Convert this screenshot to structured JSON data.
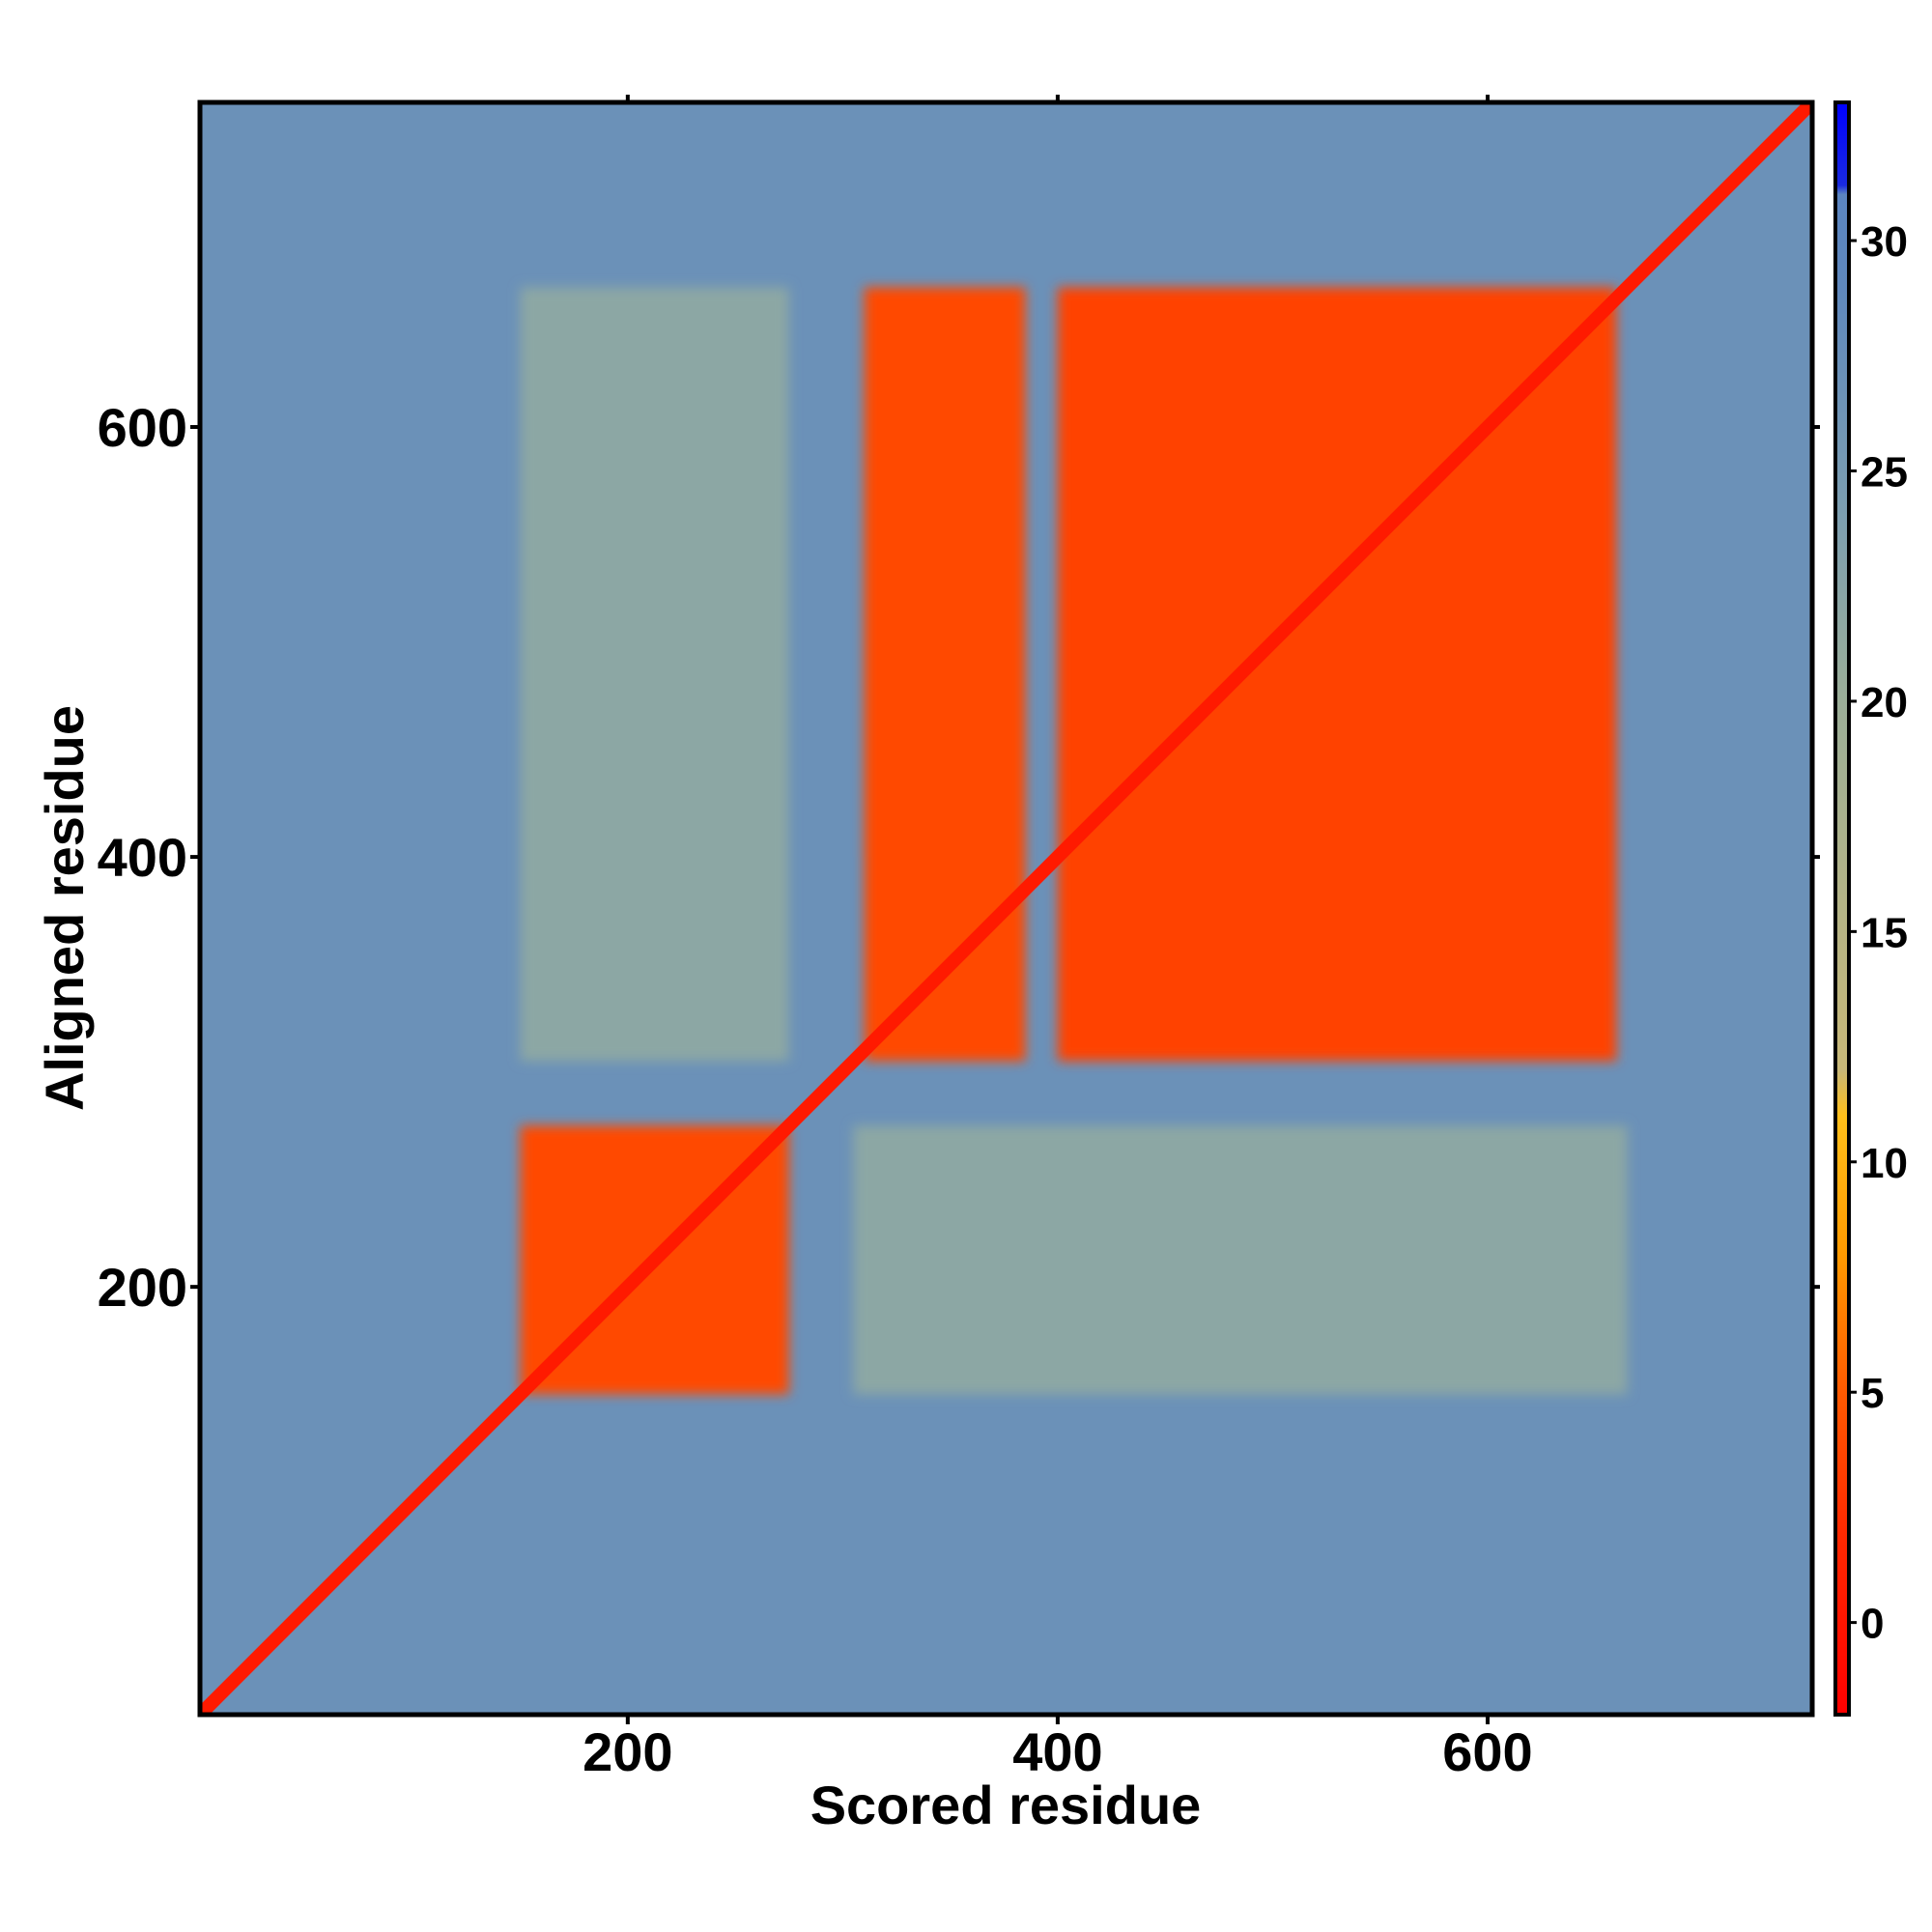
{
  "chart_data": {
    "type": "heatmap",
    "title": "",
    "xlabel": "Scored residue",
    "ylabel": "Aligned residue",
    "xlim": [
      1,
      751
    ],
    "ylim": [
      1,
      751
    ],
    "x_ticks": [
      200,
      400,
      600
    ],
    "y_ticks": [
      200,
      400,
      600
    ],
    "x_tick_labels": [
      "200",
      "400",
      "600"
    ],
    "y_tick_labels": [
      "200",
      "400",
      "600"
    ],
    "grid": false,
    "legend": "colorbar-right",
    "value_background": 27,
    "value_diagonal": 0.5,
    "domain_blocks": [
      {
        "x": [
          150,
          275
        ],
        "y": [
          150,
          275
        ],
        "value": 4
      },
      {
        "x": [
          310,
          385
        ],
        "y": [
          305,
          665
        ],
        "value": 4
      },
      {
        "x": [
          400,
          660
        ],
        "y": [
          305,
          665
        ],
        "value": 3.5
      },
      {
        "x": [
          310,
          385
        ],
        "y": [
          400,
          665
        ],
        "value": 4
      },
      {
        "x": [
          150,
          275
        ],
        "y": [
          305,
          665
        ],
        "value": 22
      },
      {
        "x": [
          305,
          665
        ],
        "y": [
          150,
          275
        ],
        "value": 22
      }
    ],
    "colorbar": {
      "range": [
        -2,
        33
      ],
      "ticks": [
        0,
        5,
        10,
        15,
        20,
        25,
        30
      ],
      "tick_labels": [
        "0",
        "5",
        "10",
        "15",
        "20",
        "25",
        "30"
      ],
      "stops": [
        {
          "value": -2,
          "color": "#ff0000"
        },
        {
          "value": 2,
          "color": "#ff2a00"
        },
        {
          "value": 5,
          "color": "#ff5a00"
        },
        {
          "value": 8,
          "color": "#ff9a00"
        },
        {
          "value": 11,
          "color": "#ffbf1a"
        },
        {
          "value": 12,
          "color": "#c8b878"
        },
        {
          "value": 20,
          "color": "#9bae98"
        },
        {
          "value": 24,
          "color": "#7d9fb0"
        },
        {
          "value": 29,
          "color": "#5f88bd"
        },
        {
          "value": 31,
          "color": "#5b85c0"
        },
        {
          "value": 31.2,
          "color": "#1a2adf"
        },
        {
          "value": 33,
          "color": "#0000ff"
        }
      ]
    }
  }
}
